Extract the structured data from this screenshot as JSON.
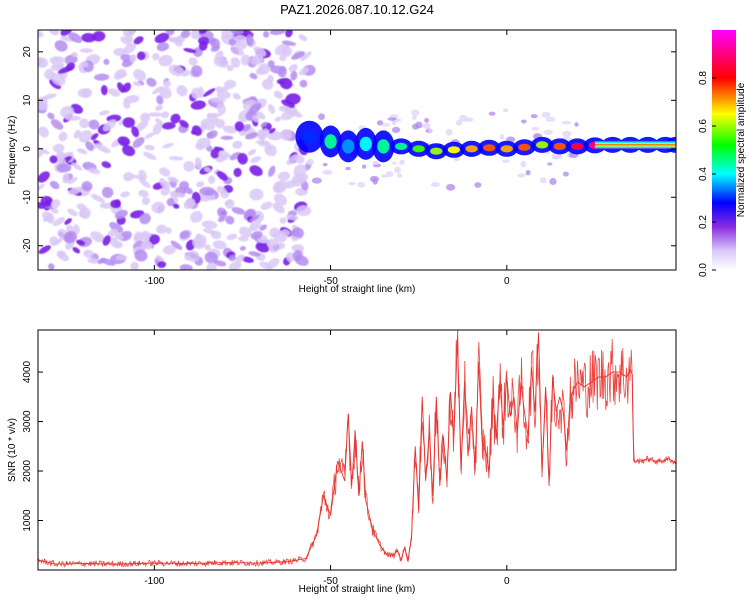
{
  "chart_data": [
    {
      "type": "heatmap",
      "title": "PAZ1.2026.087.10.12.G24",
      "xlabel": "Height of straight line (km)",
      "ylabel": "Frequency (Hz)",
      "xlim": [
        -133,
        48
      ],
      "ylim": [
        -25,
        24.5
      ],
      "xticks": [
        -100,
        -50,
        0
      ],
      "yticks": [
        -20,
        -10,
        0,
        10,
        20
      ],
      "colorbar": {
        "label": "Normalized spectral amplitude",
        "range": [
          0.0,
          1.0
        ],
        "ticks": [
          0.0,
          0.2,
          0.4,
          0.6,
          0.8
        ],
        "tick_labels": [
          "0.0",
          "0.2",
          "0.4",
          "0.6",
          "0.8"
        ],
        "colors": [
          "#ffffff",
          "#8a2be2",
          "#0000ff",
          "#00ffff",
          "#00ff00",
          "#ffff00",
          "#ff0000",
          "#ff00ff"
        ]
      },
      "noise_region_x": [
        -133,
        -56
      ],
      "signal_track": {
        "x": [
          -56,
          -50,
          -45,
          -40,
          -35,
          -30,
          -25,
          -20,
          -15,
          -10,
          -5,
          0,
          5,
          10,
          15,
          20,
          25,
          30,
          35,
          40,
          45,
          48
        ],
        "freq": [
          2.5,
          1.5,
          0.5,
          1.0,
          0.5,
          0.5,
          0.0,
          -0.5,
          -0.2,
          0.0,
          0.2,
          0.0,
          0.3,
          0.8,
          0.5,
          0.5,
          0.7,
          0.8,
          0.8,
          0.8,
          0.8,
          0.8
        ],
        "amplitude": [
          0.3,
          0.45,
          0.35,
          0.4,
          0.45,
          0.45,
          0.55,
          0.6,
          0.65,
          0.7,
          0.75,
          0.7,
          0.75,
          0.6,
          0.75,
          0.85,
          0.9,
          0.92,
          0.92,
          0.92,
          0.92,
          0.92
        ]
      }
    },
    {
      "type": "line",
      "xlabel": "Height of straight line (km)",
      "ylabel": "SNR (10 * v/v)",
      "xlim": [
        -133,
        48
      ],
      "ylim": [
        0,
        4850
      ],
      "xticks": [
        -100,
        -50,
        0
      ],
      "yticks": [
        1000,
        2000,
        3000,
        4000
      ],
      "color": "#e8332f",
      "series": [
        {
          "name": "SNR",
          "x": [
            -133,
            -128,
            -120,
            -110,
            -100,
            -90,
            -80,
            -70,
            -62,
            -57,
            -54,
            -52,
            -50,
            -48,
            -46,
            -45,
            -44,
            -43,
            -42,
            -41,
            -40,
            -38,
            -36,
            -34,
            -32,
            -31,
            -30,
            -29,
            -28,
            -27,
            -26,
            -25,
            -24,
            -23,
            -22,
            -21,
            -20,
            -19,
            -18,
            -17,
            -16,
            -15,
            -14,
            -13,
            -12,
            -11,
            -10,
            -9,
            -8,
            -7,
            -6,
            -5,
            -4,
            -3,
            -2,
            -1,
            0,
            1,
            2,
            3,
            4,
            5,
            6,
            7,
            8,
            9,
            10,
            11,
            12,
            13,
            14,
            15,
            16,
            17,
            18,
            20,
            22,
            24,
            26,
            28,
            30,
            32,
            34,
            35,
            35.6,
            36,
            38,
            40,
            42,
            44,
            46,
            48
          ],
          "y": [
            200,
            120,
            130,
            120,
            140,
            130,
            150,
            140,
            170,
            230,
            700,
            1500,
            1100,
            2200,
            1800,
            3150,
            1700,
            2800,
            1500,
            2600,
            1400,
            800,
            500,
            300,
            300,
            400,
            200,
            450,
            200,
            700,
            2500,
            1200,
            3500,
            1800,
            2800,
            1500,
            3500,
            1700,
            2700,
            1800,
            3600,
            2700,
            4700,
            2000,
            3800,
            2300,
            3300,
            2000,
            4200,
            2600,
            2400,
            2000,
            3500,
            2700,
            3800,
            2900,
            3900,
            3100,
            3500,
            2800,
            3800,
            3200,
            2700,
            4100,
            3200,
            4800,
            2000,
            3700,
            1700,
            3900,
            3200,
            3500,
            3200,
            2400,
            3500,
            3800,
            3700,
            3800,
            3900,
            3900,
            4000,
            4000,
            3900,
            4050,
            3950,
            2200,
            2200,
            2250,
            2200,
            2200,
            2250,
            2150
          ]
        }
      ]
    }
  ]
}
